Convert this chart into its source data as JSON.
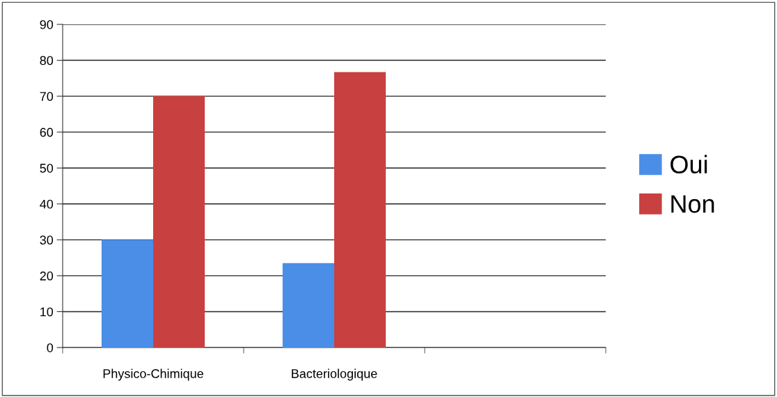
{
  "chart_data": {
    "type": "bar",
    "categories": [
      "Physico-Chimique",
      "Bacteriologique",
      null
    ],
    "series": [
      {
        "name": "Oui",
        "color": "#4a8ee8",
        "values": [
          30,
          23.5,
          null
        ]
      },
      {
        "name": "Non",
        "color": "#c8403f",
        "values": [
          70,
          76.7,
          null
        ]
      }
    ],
    "ylim": [
      0,
      90
    ],
    "yticks": [
      0,
      10,
      20,
      30,
      40,
      50,
      60,
      70,
      80,
      90
    ],
    "grid": "y",
    "legend": "right"
  }
}
